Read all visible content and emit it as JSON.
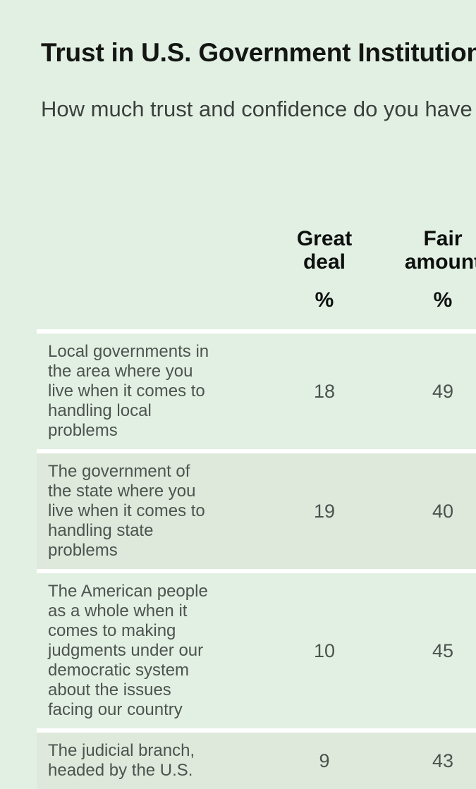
{
  "page": {
    "title": "Trust in U.S. Government Institutions",
    "subtitle": "How much trust and confidence do you have in each of the following?",
    "background_color": "#e2f0e3"
  },
  "table": {
    "columns": [
      {
        "label": "Great\ndeal",
        "unit": "%"
      },
      {
        "label": "Fair\namount",
        "unit": "%"
      }
    ],
    "rows": [
      {
        "label": "Local governments in\nthe area where you\nlive when it comes to\nhandling local\nproblems",
        "great_deal": "18",
        "fair_amount": "49"
      },
      {
        "label": "The government of\nthe state where you\nlive when it comes to\nhandling state\nproblems",
        "great_deal": "19",
        "fair_amount": "40"
      },
      {
        "label": "The American people\nas a whole when it\ncomes to making\njudgments under our\ndemocratic system\nabout the issues\nfacing our country",
        "great_deal": "10",
        "fair_amount": "45"
      },
      {
        "label": "The judicial branch,\nheaded by the U.S.",
        "great_deal": "9",
        "fair_amount": "43"
      }
    ],
    "colors": {
      "row_shade": "#dfe9db",
      "divider": "#ffffff"
    }
  },
  "chart_data": {
    "type": "table",
    "title": "Trust in U.S. Government Institutions",
    "question": "How much trust and confidence do you have in each of the following?",
    "columns": [
      "Great deal",
      "Fair amount"
    ],
    "unit": "%",
    "rows": [
      {
        "institution": "Local governments in the area where you live when it comes to handling local problems",
        "great_deal": 18,
        "fair_amount": 49
      },
      {
        "institution": "The government of the state where you live when it comes to handling state problems",
        "great_deal": 19,
        "fair_amount": 40
      },
      {
        "institution": "The American people as a whole when it comes to making judgments under our democratic system about the issues facing our country",
        "great_deal": 10,
        "fair_amount": 45
      },
      {
        "institution": "The judicial branch, headed by the U.S.",
        "great_deal": 9,
        "fair_amount": 43
      }
    ],
    "layout_hints": {
      "alternating_row_shading": true,
      "row_divider_color": "#ffffff",
      "right_side_clipped_by_viewport": true,
      "bottom_row_partially_visible": true
    }
  }
}
